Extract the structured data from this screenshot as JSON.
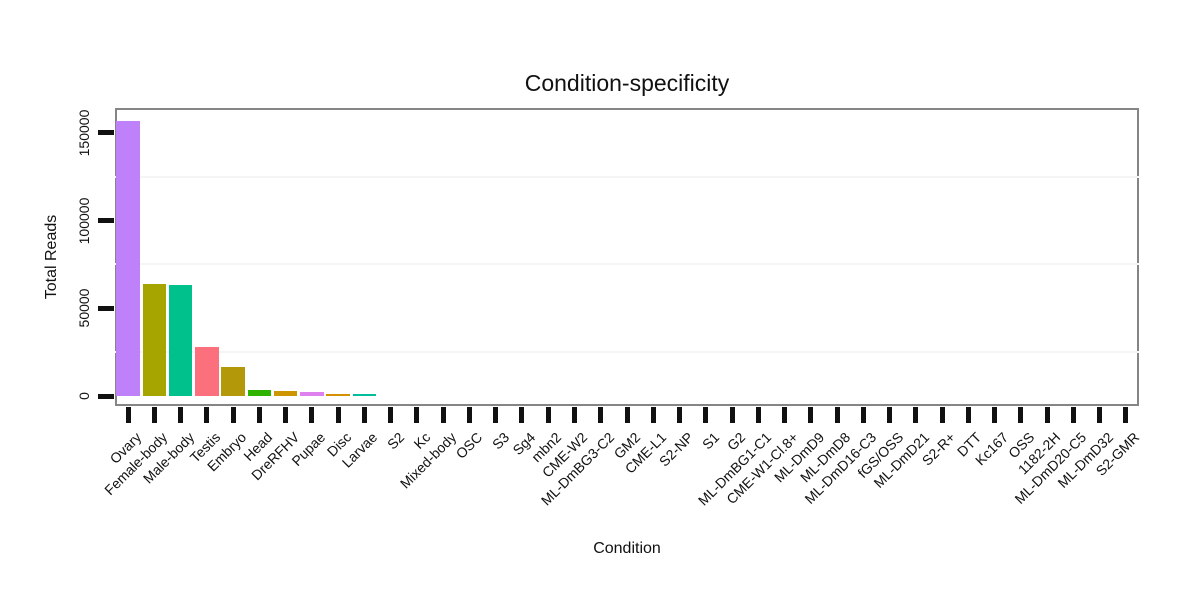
{
  "chart_data": {
    "type": "bar",
    "title": "Condition-specificity",
    "xlabel": "Condition",
    "ylabel": "Total Reads",
    "legend": "none",
    "grid": "faint-minor-horizontal",
    "ylim": [
      0,
      164000
    ],
    "ytick_values": [
      0,
      50000,
      100000,
      150000
    ],
    "ytick_labels": [
      "0",
      "50000",
      "100000",
      "150000"
    ],
    "minor_gridline_values": [
      25000,
      75000,
      125000
    ],
    "categories": [
      "Ovary",
      "Female-body",
      "Male-body",
      "Testis",
      "Embryo",
      "Head",
      "DreRFHV",
      "Pupae",
      "Disc",
      "Larvae",
      "S2",
      "Kc",
      "Mixed-body",
      "OSC",
      "S3",
      "Sg4",
      "mbn2",
      "CME-W2",
      "ML-DmBG3-C2",
      "GM2",
      "CME-L1",
      "S2-NP",
      "S1",
      "G2",
      "ML-DmBG1-C1",
      "CME-W1-Cl.8+",
      "ML-DmD9",
      "ML-DmD8",
      "ML-DmD16-C3",
      "fGS/OSS",
      "ML-DmD21",
      "S2-R+",
      "DTT",
      "Kc167",
      "OSS",
      "1182-2H",
      "ML-DmD20-C5",
      "ML-DmD32",
      "S2-GMR"
    ],
    "values": [
      157000,
      64000,
      63500,
      28000,
      16500,
      3400,
      3000,
      2400,
      1000,
      900,
      0,
      0,
      0,
      0,
      0,
      0,
      0,
      0,
      0,
      0,
      0,
      0,
      0,
      0,
      0,
      0,
      0,
      0,
      0,
      0,
      0,
      0,
      0,
      0,
      0,
      0,
      0,
      0,
      0
    ],
    "bar_colors": [
      "#BE81FA",
      "#A6A500",
      "#00C08B",
      "#FC707D",
      "#B3980A",
      "#2EB400",
      "#CD9600",
      "#DE81EE",
      "#D59100",
      "#00BE9B",
      null,
      null,
      null,
      null,
      null,
      null,
      null,
      null,
      null,
      null,
      null,
      null,
      null,
      null,
      null,
      null,
      null,
      null,
      null,
      null,
      null,
      null,
      null,
      null,
      null,
      null,
      null,
      null,
      null
    ],
    "colors": {
      "panel_border": "#858585",
      "tick": "#111111",
      "text": "#111111",
      "minor_gridline": "#f5f5f5",
      "background": "#ffffff"
    }
  }
}
